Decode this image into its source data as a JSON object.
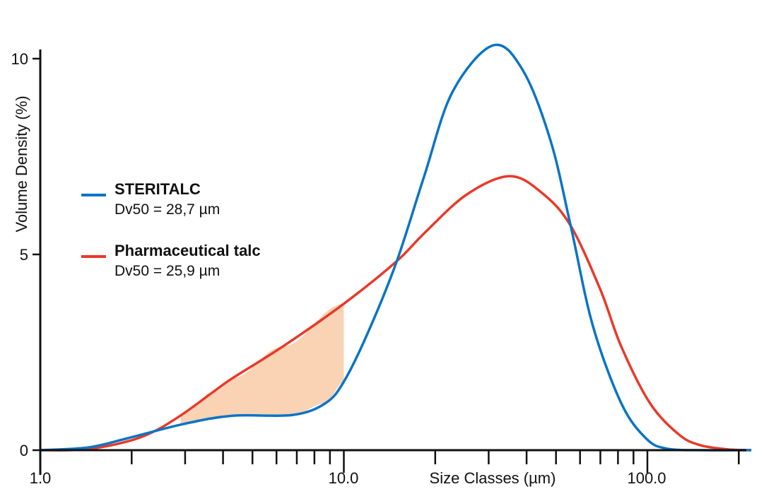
{
  "chart_data": {
    "type": "line",
    "xlabel": "Size Classes (µm)",
    "ylabel": "Volume Density (%)",
    "xscale": "log",
    "xlim": [
      1.0,
      220
    ],
    "ylim": [
      0,
      10.5
    ],
    "x_tick_labels": [
      "1.0",
      "10.0",
      "100.0"
    ],
    "y_tick_labels": [
      "0",
      "5",
      "10"
    ],
    "grid": false,
    "legend_position": "left-middle",
    "series": [
      {
        "name": "STERITALC",
        "note": "Dv50 = 28,7 µm",
        "color": "#0A74C4",
        "x": [
          1.0,
          1.44,
          1.93,
          2.97,
          4.3,
          6.8,
          8.7,
          10,
          12,
          14.9,
          18.4,
          22.8,
          31,
          38.9,
          48,
          56,
          66,
          82,
          99,
          116,
          156,
          220
        ],
        "y": [
          0,
          0.07,
          0.3,
          0.67,
          0.88,
          0.9,
          1.2,
          1.75,
          3.0,
          4.8,
          7.0,
          9.15,
          10.34,
          9.7,
          7.9,
          5.7,
          3.2,
          1.2,
          0.3,
          0.04,
          0,
          0
        ]
      },
      {
        "name": "Pharmaceutical talc",
        "note": "Dv50 = 25,9 µm",
        "color": "#E8392A",
        "x": [
          1.0,
          1.4,
          1.93,
          2.4,
          2.97,
          3.7,
          4.3,
          6.3,
          10,
          14.9,
          18.4,
          25.4,
          35.3,
          45.6,
          56,
          70,
          82,
          102,
          127,
          149,
          184,
          220
        ],
        "y": [
          0,
          0.02,
          0.22,
          0.5,
          0.94,
          1.48,
          1.84,
          2.65,
          3.74,
          4.82,
          5.54,
          6.53,
          7.0,
          6.53,
          5.72,
          4.1,
          2.65,
          1.2,
          0.4,
          0.13,
          0.02,
          0
        ]
      }
    ],
    "shaded_region": {
      "x_range": [
        2.9,
        10
      ],
      "between": [
        "STERITALC",
        "Pharmaceutical talc"
      ],
      "color": "#F9D3B4"
    }
  }
}
